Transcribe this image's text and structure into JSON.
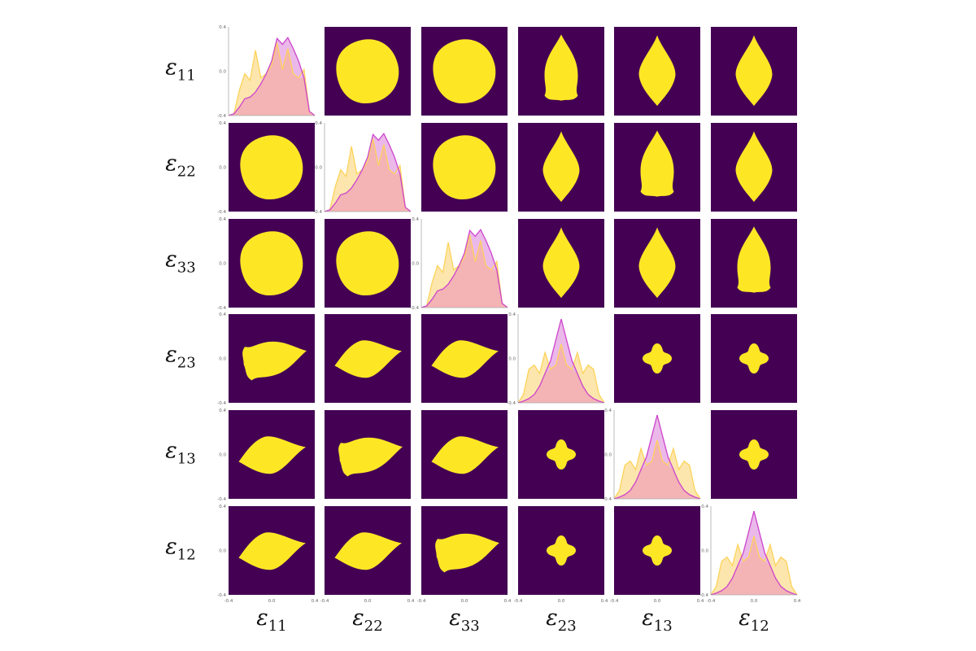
{
  "chart_data": {
    "type": "pairplot",
    "variables": [
      {
        "symbol": "ε",
        "sub": "11"
      },
      {
        "symbol": "ε",
        "sub": "22"
      },
      {
        "symbol": "ε",
        "sub": "33"
      },
      {
        "symbol": "ε",
        "sub": "23"
      },
      {
        "symbol": "ε",
        "sub": "13"
      },
      {
        "symbol": "ε",
        "sub": "12"
      }
    ],
    "xlim": [
      -0.4,
      0.4
    ],
    "ylim": [
      -0.4,
      0.4
    ],
    "ticks": [
      "-0.4",
      "0.0",
      "0.4"
    ],
    "tick_values": [
      -0.4,
      0.0,
      0.4
    ],
    "grid": false,
    "diagonal": {
      "type": "kde",
      "x": [
        -0.4,
        -0.35,
        -0.3,
        -0.25,
        -0.2,
        -0.15,
        -0.1,
        -0.05,
        0,
        0.05,
        0.1,
        0.15,
        0.2,
        0.25,
        0.3,
        0.35,
        0.4
      ],
      "normal_components": {
        "series": [
          {
            "color": "#fdd35a",
            "values": [
              0,
              0.02,
              0.3,
              0.5,
              0.42,
              0.78,
              0.45,
              0.5,
              0.6,
              0.87,
              0.55,
              0.8,
              0.5,
              0.45,
              0.55,
              0.05,
              0
            ]
          },
          {
            "color": "#cc44cc",
            "values": [
              0,
              0.02,
              0.1,
              0.2,
              0.22,
              0.28,
              0.38,
              0.5,
              0.65,
              0.92,
              0.85,
              0.93,
              0.8,
              0.65,
              0.45,
              0.05,
              0
            ]
          }
        ]
      },
      "shear_components": {
        "series": [
          {
            "color": "#fdd35a",
            "values": [
              0,
              0.1,
              0.4,
              0.45,
              0.35,
              0.6,
              0.4,
              0.45,
              0.7,
              0.45,
              0.4,
              0.6,
              0.35,
              0.45,
              0.4,
              0.1,
              0
            ]
          },
          {
            "color": "#cc44cc",
            "values": [
              0,
              0.02,
              0.05,
              0.1,
              0.2,
              0.35,
              0.5,
              0.75,
              1.0,
              0.75,
              0.5,
              0.35,
              0.2,
              0.1,
              0.05,
              0.02,
              0
            ]
          }
        ]
      }
    },
    "off_diagonal": {
      "type": "density-region",
      "background_color": "#440154",
      "region_color": "#fde725",
      "panel_kinds": [
        [
          "kde",
          "round",
          "round",
          "arrow-up-notched",
          "arrow-up",
          "arrow-up"
        ],
        [
          "round",
          "kde",
          "round",
          "arrow-up",
          "arrow-up-notched",
          "arrow-up"
        ],
        [
          "round",
          "round",
          "kde",
          "arrow-up",
          "arrow-up",
          "arrow-up-notched"
        ],
        [
          "arrow-right-notched",
          "arrow-right",
          "arrow-right",
          "kde",
          "clover",
          "clover"
        ],
        [
          "arrow-right",
          "arrow-right-notched",
          "arrow-right",
          "clover",
          "kde",
          "clover"
        ],
        [
          "arrow-right",
          "arrow-right",
          "arrow-right-notched",
          "clover",
          "clover",
          "kde"
        ]
      ]
    },
    "overlap_color": "#f4b3b5"
  }
}
